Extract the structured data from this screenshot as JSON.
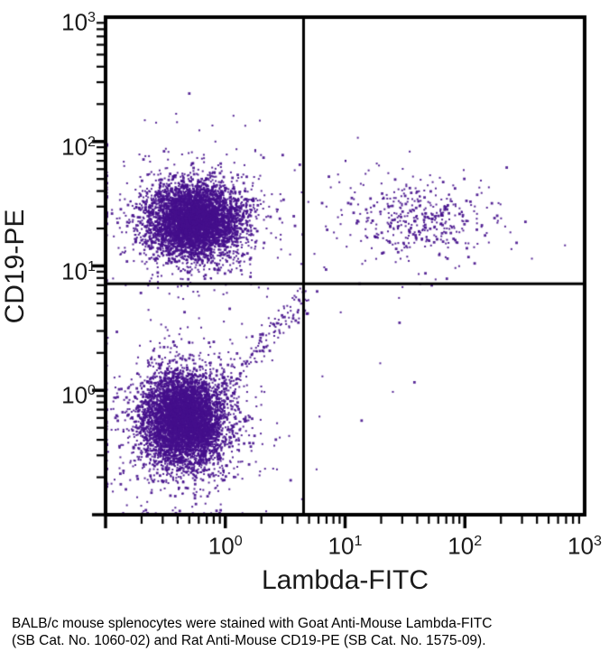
{
  "figure": {
    "xlabel": "Lambda-FITC",
    "ylabel": "CD19-PE",
    "caption_line1": "BALB/c mouse splenocytes were stained with Goat Anti-Mouse Lambda-FITC",
    "caption_line2": "(SB Cat. No. 1060-02) and Rat Anti-Mouse CD19-PE (SB Cat. No. 1575-09)."
  },
  "colors": {
    "dot": "#45108c",
    "axis": "#000000",
    "background": "#ffffff",
    "text": "#1a1a1a"
  },
  "chart_data": {
    "type": "scatter",
    "subtype": "flow-cytometry-quadrant-dot-plot",
    "title": "",
    "xlabel": "Lambda-FITC",
    "ylabel": "CD19-PE",
    "x_scale": "log",
    "y_scale": "log",
    "x_range": [
      0.1,
      1000
    ],
    "y_range": [
      0.1,
      1000
    ],
    "x_ticks": [
      1,
      10,
      100,
      1000
    ],
    "y_ticks": [
      1,
      10,
      100,
      1000
    ],
    "minor_ticks_log_decades": true,
    "grid": false,
    "legend": null,
    "quadrant_gate": {
      "x": 4.5,
      "y": 7.2
    },
    "dot_color": "#45108c",
    "populations": [
      {
        "name": "CD19-negative Lambda-negative lymphocytes (dense core)",
        "kind": "gaussian",
        "center": [
          0.45,
          0.58
        ],
        "sigma_log": [
          0.17,
          0.19
        ],
        "count": 5200
      },
      {
        "name": "CD19-negative Lambda-negative scatter halo",
        "kind": "gaussian",
        "center": [
          0.47,
          0.56
        ],
        "sigma_log": [
          0.33,
          0.36
        ],
        "count": 650
      },
      {
        "name": "CD19-positive Lambda-negative B cells (dense core)",
        "kind": "gaussian",
        "center": [
          0.55,
          23
        ],
        "sigma_log": [
          0.19,
          0.15
        ],
        "count": 4800
      },
      {
        "name": "CD19-positive Lambda-negative scatter halo",
        "kind": "gaussian",
        "center": [
          0.56,
          23
        ],
        "sigma_log": [
          0.38,
          0.28
        ],
        "count": 550
      },
      {
        "name": "CD19-positive Lambda-positive B cells (core)",
        "kind": "gaussian",
        "center": [
          42,
          23.5
        ],
        "sigma_log": [
          0.28,
          0.15
        ],
        "count": 330
      },
      {
        "name": "CD19-positive Lambda-positive scatter halo",
        "kind": "gaussian",
        "center": [
          38,
          23.5
        ],
        "sigma_log": [
          0.5,
          0.26
        ],
        "count": 110
      },
      {
        "name": "autofluorescent diagonal streak",
        "kind": "diagonal",
        "x_range": [
          1.05,
          5.0
        ],
        "y_equals_x_times": 1.15,
        "jitter_log": 0.07,
        "count": 140
      },
      {
        "name": "sparse events lower-right quadrant",
        "kind": "uniform",
        "x_range": [
          4.6,
          56
        ],
        "y_range": [
          0.5,
          6.6
        ],
        "count": 9
      },
      {
        "name": "rare high-PE outliers",
        "kind": "uniform",
        "x_range": [
          0.5,
          4.0
        ],
        "y_range": [
          90,
          320
        ],
        "count": 4
      }
    ]
  }
}
